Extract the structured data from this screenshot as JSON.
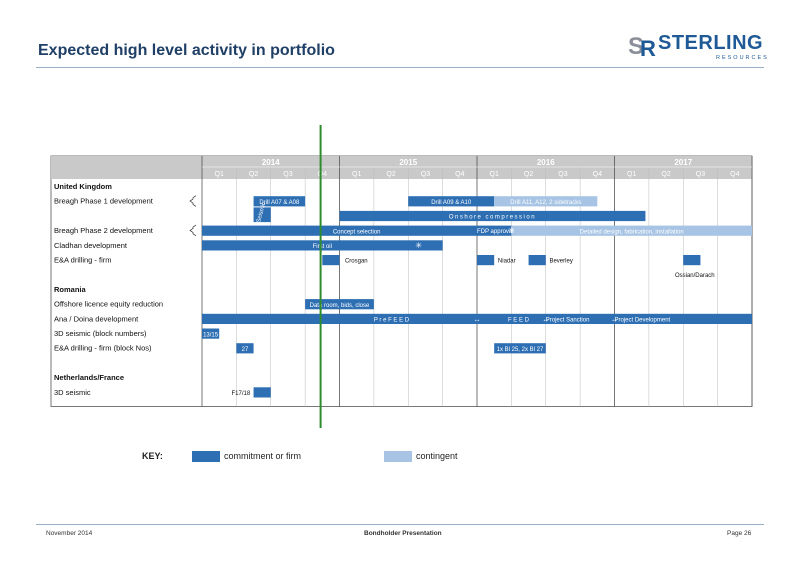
{
  "title": "Expected high level activity in portfolio",
  "logo": {
    "name": "STERLING",
    "sub": "RESOURCES"
  },
  "chart_data": {
    "type": "gantt",
    "years": [
      "2014",
      "2015",
      "2016",
      "2017"
    ],
    "quarters": [
      "Q1",
      "Q2",
      "Q3",
      "Q4",
      "Q1",
      "Q2",
      "Q3",
      "Q4",
      "Q1",
      "Q2",
      "Q3",
      "Q4",
      "Q1",
      "Q2",
      "Q3",
      "Q4"
    ],
    "rows": [
      {
        "label": "United Kingdom",
        "bold": true
      },
      {
        "label": "Breagh Phase 1 development",
        "bold": false
      },
      {
        "label": "",
        "bold": false
      },
      {
        "label": "Breagh Phase 2 development",
        "bold": false
      },
      {
        "label": "Cladhan development",
        "bold": false
      },
      {
        "label": "E&A drilling - firm",
        "bold": false
      },
      {
        "label": "",
        "bold": false
      },
      {
        "label": "Romania",
        "bold": true
      },
      {
        "label": "Offshore licence equity reduction",
        "bold": false
      },
      {
        "label": "Ana / Doina development",
        "bold": false
      },
      {
        "label": "3D seismic (block numbers)",
        "bold": false
      },
      {
        "label": "E&A drilling - firm (block Nos)",
        "bold": false
      },
      {
        "label": "",
        "bold": false
      },
      {
        "label": "Netherlands/France",
        "bold": true
      },
      {
        "label": "3D seismic",
        "bold": false
      }
    ],
    "bars": [
      {
        "row": 1,
        "start": 1.5,
        "end": 3.0,
        "status": "firm",
        "label": "Drill A07 & A08"
      },
      {
        "row": 1,
        "start": 6.0,
        "end": 8.5,
        "status": "firm",
        "label": "Drill A09 & A10"
      },
      {
        "row": 1,
        "start": 8.5,
        "end": 11.5,
        "status": "contingent",
        "label": "Drill A11, A12, 2 sidetracks"
      },
      {
        "row": 2,
        "start": 4.0,
        "end": 12.9,
        "status": "firm",
        "label": "Onshore compression"
      },
      {
        "row": 3,
        "start": 0.0,
        "end": 9.0,
        "status": "firm",
        "label": "Concept selection"
      },
      {
        "row": 3,
        "start": 9.0,
        "end": 16.0,
        "status": "contingent",
        "label": "Detailed design, fabrication, installation"
      },
      {
        "row": 4,
        "start": 0.0,
        "end": 7.0,
        "status": "firm",
        "label": "First oil"
      },
      {
        "row": 5,
        "start": 3.5,
        "end": 4.0,
        "status": "firm",
        "label": ""
      },
      {
        "row": 5,
        "start": 8.0,
        "end": 8.5,
        "status": "firm",
        "label": ""
      },
      {
        "row": 5,
        "start": 9.5,
        "end": 10.0,
        "status": "firm",
        "label": ""
      },
      {
        "row": 5,
        "start": 14.0,
        "end": 14.5,
        "status": "firm",
        "label": ""
      },
      {
        "row": 8,
        "start": 3.0,
        "end": 5.0,
        "status": "firm",
        "label": "Data room, bids, close"
      },
      {
        "row": 9,
        "start": 0.0,
        "end": 16.0,
        "status": "firm",
        "label": ""
      },
      {
        "row": 10,
        "start": 0.0,
        "end": 0.5,
        "status": "firm",
        "label": "13/15"
      },
      {
        "row": 11,
        "start": 1.0,
        "end": 1.5,
        "status": "firm",
        "label": "27"
      },
      {
        "row": 11,
        "start": 8.5,
        "end": 10.0,
        "status": "firm",
        "label": "1x Bl 25, 2x Bl 27"
      },
      {
        "row": 14,
        "start": 1.5,
        "end": 2.0,
        "status": "firm",
        "label": ""
      }
    ],
    "seismic_bar": {
      "row_from": 1,
      "row_to": 3,
      "start": 1.5,
      "end": 2.0,
      "status": "firm",
      "label": "Seismic"
    },
    "texts": [
      {
        "row": 3,
        "q": 8.0,
        "text": "FDP approval"
      },
      {
        "row": 5,
        "q": 4.1,
        "text": "Crosgan"
      },
      {
        "row": 5,
        "q": 8.55,
        "text": "Niadar"
      },
      {
        "row": 5,
        "q": 10.05,
        "text": "Beverley"
      },
      {
        "row": 6,
        "q": 13.7,
        "text": "Ossian/Darach"
      },
      {
        "row": 9,
        "q": 5.0,
        "text": "P r e   F E E D"
      },
      {
        "row": 9,
        "q": 8.9,
        "text": "F E E D"
      },
      {
        "row": 9,
        "q": 10.0,
        "text": "Project Sanction"
      },
      {
        "row": 9,
        "q": 12.0,
        "text": "Project Development"
      },
      {
        "row": 14,
        "q": 0.8,
        "text": "F17/18"
      }
    ],
    "milestones": [
      {
        "row": 3,
        "q": 9.0
      },
      {
        "row": 4,
        "q": 6.3
      }
    ],
    "today_marker_q": 3.45
  },
  "colors": {
    "firm": "#2e6fb3",
    "contingent": "#a7c4e4",
    "header": "#c9c9c9",
    "today": "#2e8b2e"
  },
  "key": {
    "label": "KEY:",
    "firm": "commitment or firm",
    "contingent": "contingent"
  },
  "footer": {
    "left": "November 2014",
    "center": "Bondholder Presentation",
    "right": "Page 26"
  }
}
